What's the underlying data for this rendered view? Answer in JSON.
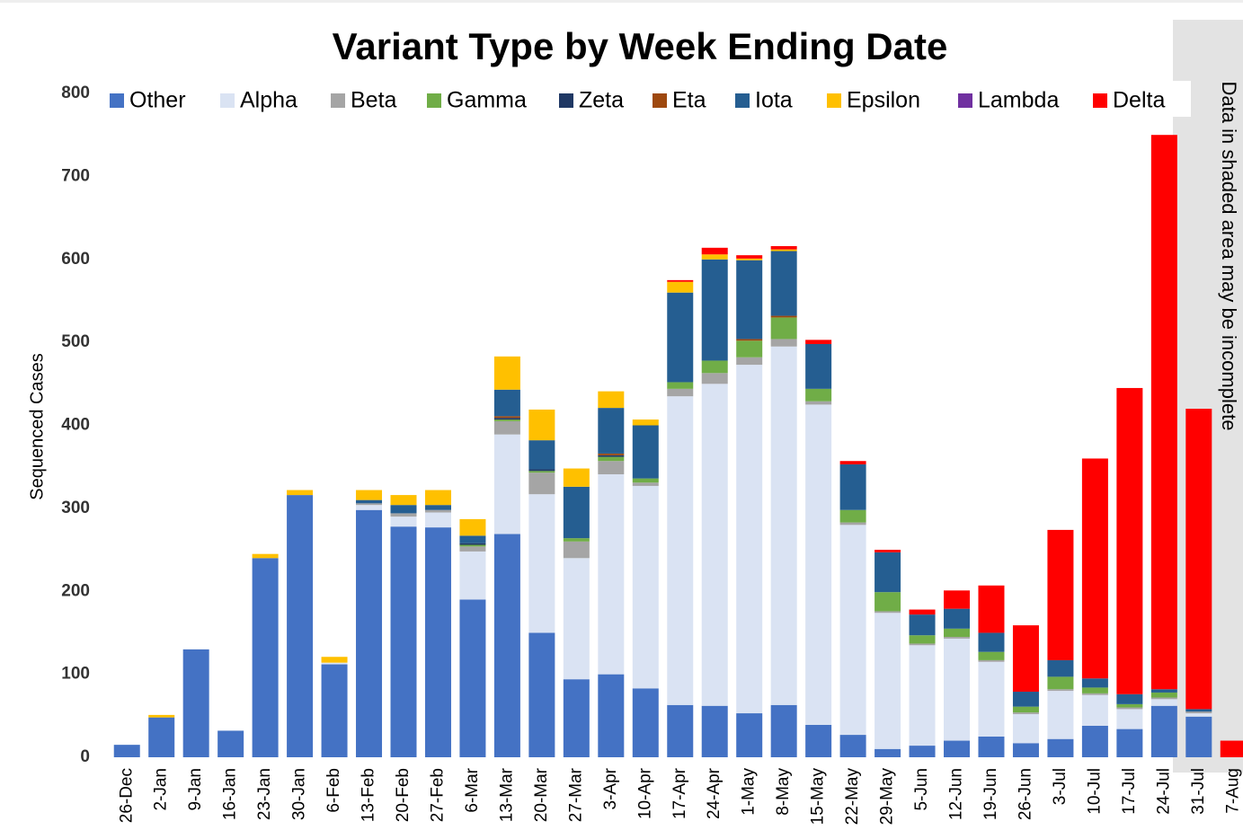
{
  "chart_data": {
    "type": "stacked_bar",
    "title": "Variant Type by Week Ending Date",
    "y_label": "Sequenced Cases",
    "annotation": "Data in shaded area may be incomplete",
    "categories": [
      "26-Dec",
      "2-Jan",
      "9-Jan",
      "16-Jan",
      "23-Jan",
      "30-Jan",
      "6-Feb",
      "13-Feb",
      "20-Feb",
      "27-Feb",
      "6-Mar",
      "13-Mar",
      "20-Mar",
      "27-Mar",
      "3-Apr",
      "10-Apr",
      "17-Apr",
      "24-Apr",
      "1-May",
      "8-May",
      "15-May",
      "22-May",
      "29-May",
      "5-Jun",
      "12-Jun",
      "19-Jun",
      "26-Jun",
      "3-Jul",
      "10-Jul",
      "17-Jul",
      "24-Jul",
      "31-Jul",
      "7-Aug"
    ],
    "series": [
      {
        "name": "Other",
        "color": "#4472c4",
        "values": [
          15,
          48,
          130,
          32,
          240,
          316,
          112,
          298,
          278,
          277,
          190,
          269,
          150,
          94,
          100,
          83,
          63,
          62,
          53,
          63,
          39,
          27,
          10,
          14,
          20,
          25,
          17,
          22,
          38,
          34,
          62,
          49,
          0
        ]
      },
      {
        "name": "Alpha",
        "color": "#dae3f3",
        "values": [
          0,
          0,
          0,
          0,
          0,
          0,
          2,
          6,
          12,
          18,
          58,
          120,
          167,
          146,
          241,
          244,
          372,
          388,
          420,
          432,
          386,
          253,
          164,
          121,
          123,
          90,
          35,
          58,
          37,
          24,
          8,
          4,
          0
        ]
      },
      {
        "name": "Beta",
        "color": "#a5a5a5",
        "values": [
          0,
          0,
          0,
          0,
          0,
          0,
          0,
          2,
          4,
          3,
          6,
          16,
          26,
          20,
          16,
          4,
          9,
          13,
          9,
          9,
          4,
          3,
          2,
          2,
          2,
          2,
          2,
          2,
          2,
          2,
          2,
          2,
          0
        ]
      },
      {
        "name": "Gamma",
        "color": "#70ad47",
        "values": [
          0,
          0,
          0,
          0,
          0,
          0,
          0,
          0,
          0,
          0,
          2,
          2,
          2,
          4,
          5,
          5,
          8,
          15,
          20,
          26,
          15,
          15,
          23,
          10,
          10,
          10,
          7,
          15,
          7,
          4,
          6,
          0,
          0
        ]
      },
      {
        "name": "Zeta",
        "color": "#1f3864",
        "values": [
          0,
          0,
          0,
          0,
          0,
          0,
          0,
          0,
          0,
          0,
          2,
          2,
          2,
          0,
          2,
          0,
          0,
          0,
          0,
          0,
          0,
          0,
          0,
          0,
          0,
          0,
          0,
          0,
          0,
          0,
          0,
          0,
          0
        ]
      },
      {
        "name": "Eta",
        "color": "#9e480e",
        "values": [
          0,
          0,
          0,
          0,
          0,
          0,
          0,
          0,
          0,
          0,
          0,
          2,
          0,
          0,
          2,
          0,
          0,
          0,
          2,
          2,
          0,
          0,
          0,
          0,
          0,
          0,
          0,
          0,
          0,
          0,
          0,
          0,
          0
        ]
      },
      {
        "name": "Iota",
        "color": "#255e91",
        "values": [
          0,
          0,
          0,
          0,
          0,
          0,
          0,
          4,
          10,
          6,
          9,
          32,
          35,
          62,
          55,
          64,
          108,
          122,
          95,
          78,
          54,
          55,
          48,
          25,
          24,
          23,
          18,
          20,
          11,
          12,
          4,
          3,
          0
        ]
      },
      {
        "name": "Epsilon",
        "color": "#ffc000",
        "values": [
          0,
          3,
          0,
          0,
          5,
          6,
          7,
          12,
          12,
          18,
          20,
          40,
          37,
          22,
          20,
          7,
          13,
          6,
          2,
          2,
          0,
          0,
          0,
          0,
          0,
          0,
          0,
          0,
          0,
          0,
          0,
          0,
          0
        ]
      },
      {
        "name": "Lambda",
        "color": "#7030a0",
        "values": [
          0,
          0,
          0,
          0,
          0,
          0,
          0,
          0,
          0,
          0,
          0,
          0,
          0,
          0,
          0,
          0,
          0,
          0,
          0,
          0,
          0,
          0,
          0,
          0,
          0,
          0,
          0,
          0,
          0,
          0,
          0,
          0,
          0
        ]
      },
      {
        "name": "Delta",
        "color": "#ff0000",
        "values": [
          0,
          0,
          0,
          0,
          0,
          0,
          0,
          0,
          0,
          0,
          0,
          0,
          0,
          0,
          0,
          0,
          2,
          8,
          4,
          4,
          5,
          4,
          3,
          6,
          22,
          57,
          80,
          157,
          265,
          369,
          668,
          362,
          20
        ]
      }
    ],
    "ylim": [
      0,
      800
    ],
    "yticks": [
      0,
      100,
      200,
      300,
      400,
      500,
      600,
      700,
      800
    ]
  }
}
